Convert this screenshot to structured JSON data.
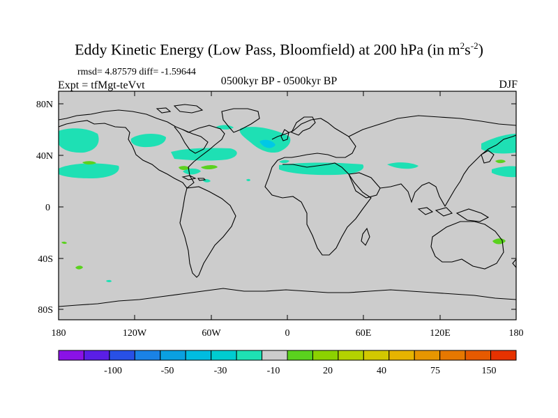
{
  "title_main": "Eddy Kinetic Energy (Low Pass, Bloomfield) at 200 hPa (in m",
  "title_sup1": "2",
  "title_mid": "s",
  "title_sup2": "-2",
  "title_end": ")",
  "stats": "rmsd= 4.87579 diff= -1.59644",
  "expt": "Expt = tfMgt-teVvt",
  "period": "0500kyr BP - 0500kyr BP",
  "season": "DJF",
  "y_ticks": [
    "80N",
    "40N",
    "0",
    "40S",
    "80S"
  ],
  "x_ticks": [
    "180",
    "120W",
    "60W",
    "0",
    "60E",
    "120E",
    "180"
  ],
  "colorbar": {
    "colors": [
      "#8a12e6",
      "#5a1ee6",
      "#2850e6",
      "#1a82e6",
      "#0aa0e0",
      "#00bce0",
      "#00ccd0",
      "#1ee0b4",
      "#cccccc",
      "#5ad21e",
      "#8cd200",
      "#b4d200",
      "#d2c800",
      "#e6b400",
      "#e69600",
      "#e67800",
      "#e65a00",
      "#e63200"
    ],
    "labels": [
      "-100",
      "-50",
      "-30",
      "-10",
      "20",
      "40",
      "75",
      "150"
    ]
  },
  "colors": {
    "land_ocean": "#cccccc",
    "positive": "#5ad21e",
    "negative": "#1ee0c8",
    "negative_strong": "#00c8e6"
  }
}
